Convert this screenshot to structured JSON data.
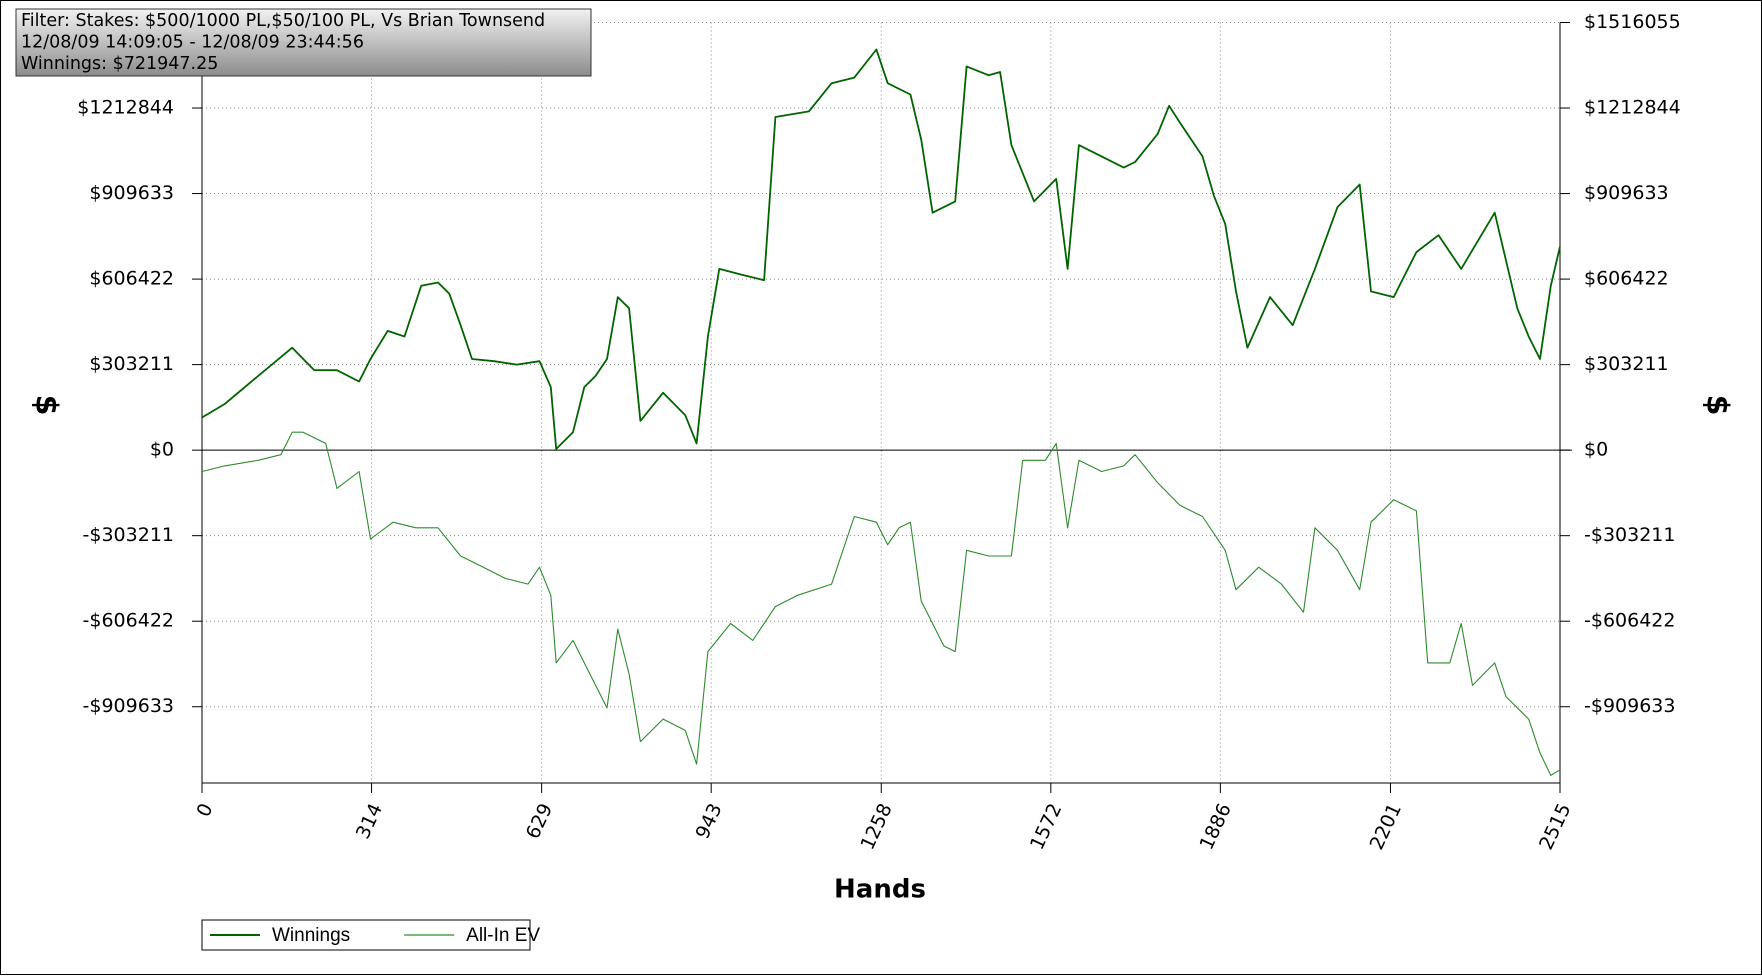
{
  "chart_data": {
    "type": "line",
    "annotations": [
      "Filter: Stakes: $500/1000 PL,$50/100 PL, Vs Brian Townsend",
      "12/08/09 14:09:05 - 12/08/09 23:44:56",
      "Winnings: $721947.25"
    ],
    "x_label": "Hands",
    "y_label": "$",
    "xlim": [
      0,
      2515
    ],
    "xticks": [
      0,
      314,
      629,
      943,
      1258,
      1572,
      1886,
      2201,
      2515
    ],
    "ylim": [
      -1180000,
      1516055
    ],
    "yticks": [
      {
        "value": -909633,
        "label": "-$909633"
      },
      {
        "value": -606422,
        "label": "-$606422"
      },
      {
        "value": -303211,
        "label": "-$303211"
      },
      {
        "value": 0,
        "label": "$0"
      },
      {
        "value": 303211,
        "label": "$303211"
      },
      {
        "value": 606422,
        "label": "$606422"
      },
      {
        "value": 909633,
        "label": "$909633"
      },
      {
        "value": 1212844,
        "label": "$1212844"
      },
      {
        "value": 1516055,
        "label": "$1516055"
      }
    ],
    "grid": true,
    "legend": "bottom-left",
    "series": [
      {
        "name": "Winnings",
        "color": "#006400",
        "x": [
          0,
          42,
          104,
          167,
          208,
          250,
          291,
          312,
          344,
          375,
          406,
          437,
          458,
          479,
          500,
          541,
          583,
          625,
          646,
          656,
          687,
          708,
          729,
          750,
          770,
          791,
          812,
          854,
          895,
          916,
          937,
          958,
          999,
          1041,
          1062,
          1124,
          1166,
          1208,
          1249,
          1270,
          1312,
          1332,
          1353,
          1395,
          1416,
          1457,
          1478,
          1499,
          1541,
          1582,
          1603,
          1624,
          1666,
          1707,
          1728,
          1770,
          1791,
          1811,
          1853,
          1874,
          1895,
          1915,
          1936,
          1978,
          2020,
          2061,
          2103,
          2144,
          2165,
          2207,
          2249,
          2290,
          2332,
          2394,
          2436,
          2457,
          2478,
          2498,
          2515
        ],
        "values": [
          115700,
          163600,
          263300,
          363100,
          283300,
          283300,
          243400,
          323200,
          422900,
          403000,
          582500,
          594500,
          554600,
          442900,
          323200,
          315200,
          303200,
          315200,
          223400,
          4000,
          63800,
          223400,
          263300,
          323200,
          542600,
          502700,
          103700,
          203500,
          123700,
          23900,
          403000,
          642400,
          622400,
          602500,
          1181000,
          1201000,
          1300700,
          1320700,
          1420400,
          1300700,
          1260800,
          1101200,
          841900,
          881800,
          1360600,
          1328700,
          1340600,
          1081300,
          881800,
          961600,
          642400,
          1081300,
          1041400,
          1001500,
          1021400,
          1121200,
          1220900,
          1161100,
          1041400,
          901700,
          802000,
          562600,
          363100,
          542600,
          442900,
          642400,
          861800,
          941600,
          562600,
          542600,
          702200,
          762100,
          642400,
          841900,
          502700,
          403000,
          323200,
          582500,
          721947.25
        ]
      },
      {
        "name": "All-In EV",
        "color": "#2e8b2e",
        "x": [
          0,
          42,
          104,
          146,
          167,
          187,
          229,
          250,
          291,
          312,
          354,
          396,
          437,
          479,
          521,
          562,
          604,
          625,
          646,
          656,
          687,
          708,
          750,
          770,
          791,
          812,
          854,
          895,
          916,
          937,
          979,
          1020,
          1062,
          1103,
          1166,
          1208,
          1249,
          1270,
          1291,
          1312,
          1332,
          1374,
          1395,
          1416,
          1457,
          1499,
          1520,
          1562,
          1582,
          1603,
          1624,
          1666,
          1707,
          1728,
          1770,
          1811,
          1853,
          1895,
          1915,
          1957,
          1999,
          2040,
          2061,
          2103,
          2144,
          2165,
          2207,
          2249,
          2270,
          2311,
          2332,
          2353,
          2394,
          2415,
          2457,
          2478,
          2498,
          2515
        ],
        "values": [
          -75800,
          -55900,
          -35900,
          -16000,
          63800,
          63800,
          23900,
          -135700,
          -75800,
          -315200,
          -255400,
          -275300,
          -275300,
          -375100,
          -415000,
          -454900,
          -474800,
          -415000,
          -514700,
          -754100,
          -674300,
          -754100,
          -913700,
          -634400,
          -794000,
          -1033400,
          -953600,
          -993500,
          -1113200,
          -714200,
          -614500,
          -674300,
          -554600,
          -514700,
          -474800,
          -235400,
          -255400,
          -335200,
          -275300,
          -255400,
          -534700,
          -694300,
          -714200,
          -355100,
          -375100,
          -375100,
          -35900,
          -35900,
          23900,
          -275300,
          -35900,
          -75800,
          -55900,
          -16000,
          -115700,
          -195500,
          -235400,
          -355100,
          -494800,
          -415000,
          -474800,
          -574600,
          -275300,
          -355100,
          -494800,
          -255400,
          -175600,
          -215500,
          -754100,
          -754100,
          -614500,
          -833900,
          -754100,
          -873800,
          -953600,
          -1073300,
          -1153100,
          -1133200
        ]
      }
    ]
  }
}
